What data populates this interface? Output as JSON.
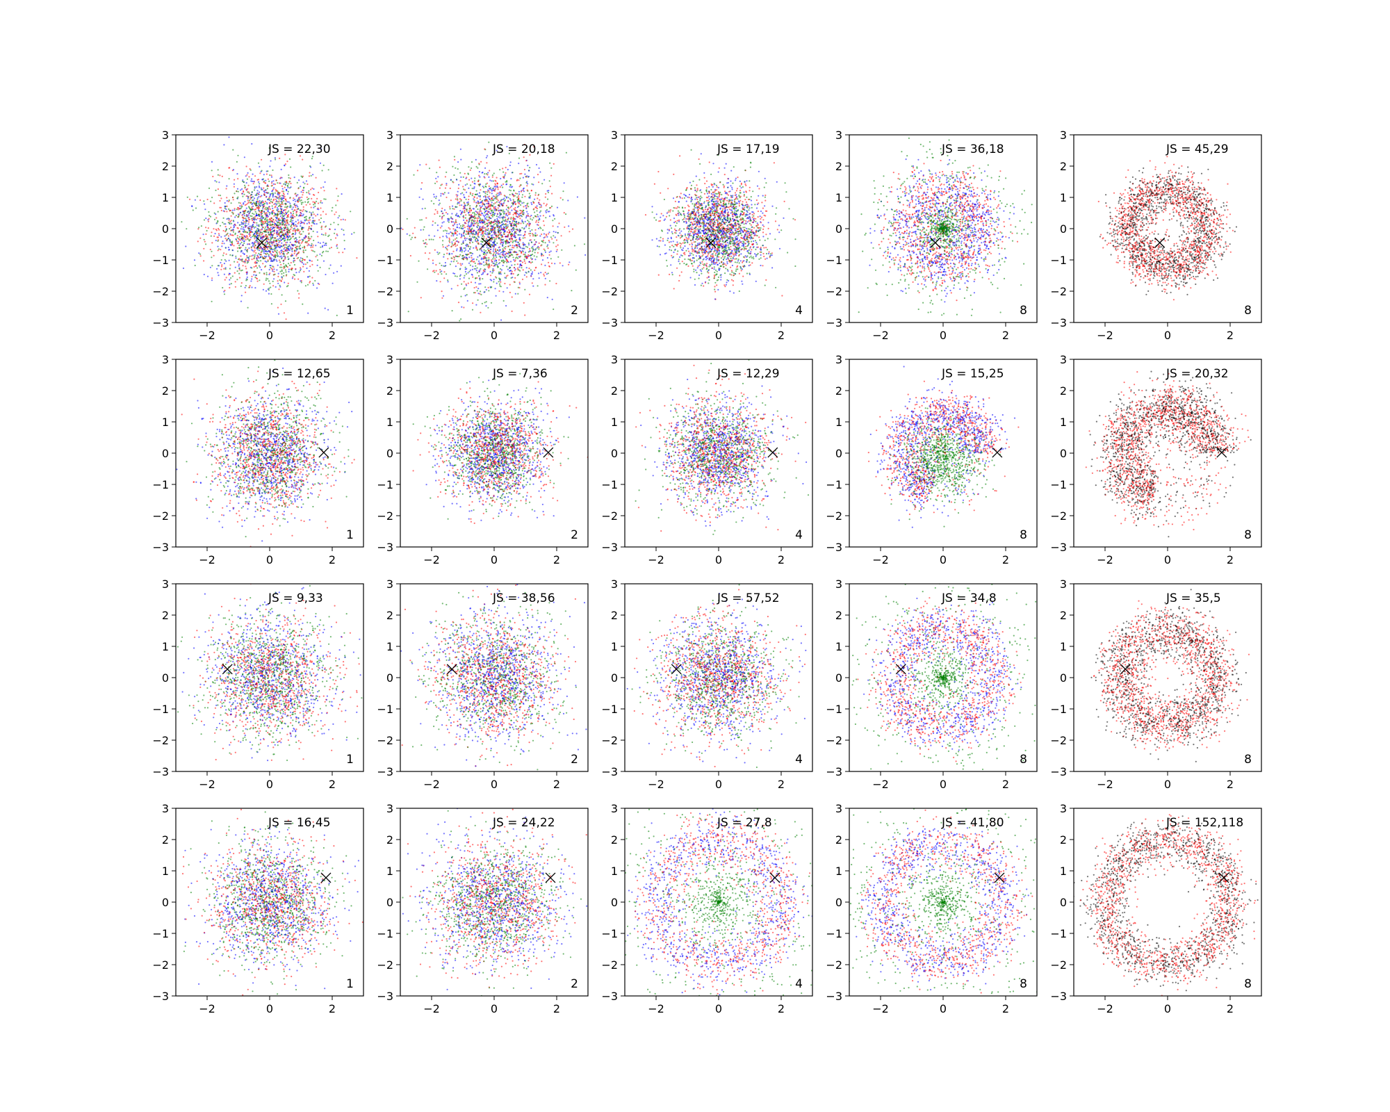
{
  "chart_data": {
    "type": "scatter",
    "layout": {
      "rows": 4,
      "cols": 5
    },
    "axes": {
      "xlim": [
        -3,
        3
      ],
      "ylim": [
        -3,
        3
      ],
      "xticks": [
        -2,
        0,
        2
      ],
      "yticks": [
        -3,
        -2,
        -1,
        0,
        1,
        2,
        3
      ],
      "grid": false
    },
    "colors": {
      "red": "#ff0000",
      "green": "#008000",
      "blue": "#0000ff",
      "black": "#000000"
    },
    "marker_positions": [
      [
        -0.25,
        -0.45
      ],
      [
        1.73,
        0.02
      ],
      [
        -1.35,
        0.27
      ],
      [
        1.8,
        0.78
      ]
    ],
    "panels": [
      {
        "row": 0,
        "col": 0,
        "js": "JS = 22,30",
        "n": "1",
        "pattern": "gauss",
        "sigma": 0.9,
        "colors": [
          "blue",
          "green",
          "red"
        ]
      },
      {
        "row": 0,
        "col": 1,
        "js": "JS = 20,18",
        "n": "2",
        "pattern": "gauss",
        "sigma": 0.95,
        "colors": [
          "blue",
          "green",
          "red"
        ]
      },
      {
        "row": 0,
        "col": 2,
        "js": "JS = 17,19",
        "n": "4",
        "pattern": "gauss",
        "sigma": 0.75,
        "colors": [
          "blue",
          "green",
          "red"
        ]
      },
      {
        "row": 0,
        "col": 3,
        "js": "JS = 36,18",
        "n": "8",
        "pattern": "ring",
        "radius": 1.2,
        "width": 0.45,
        "colors": [
          "green",
          "blue",
          "red"
        ]
      },
      {
        "row": 0,
        "col": 4,
        "js": "JS = 45,29",
        "n": "8",
        "pattern": "ring",
        "radius": 1.3,
        "width": 0.35,
        "colors": [
          "black",
          "red"
        ]
      },
      {
        "row": 1,
        "col": 0,
        "js": "JS = 12,65",
        "n": "1",
        "pattern": "gauss",
        "sigma": 0.9,
        "colors": [
          "blue",
          "green",
          "red"
        ]
      },
      {
        "row": 1,
        "col": 1,
        "js": "JS = 7,36",
        "n": "2",
        "pattern": "gauss",
        "sigma": 0.8,
        "colors": [
          "blue",
          "green",
          "red"
        ]
      },
      {
        "row": 1,
        "col": 2,
        "js": "JS = 12,29",
        "n": "4",
        "pattern": "gauss",
        "sigma": 0.85,
        "colors": [
          "blue",
          "red",
          "green"
        ]
      },
      {
        "row": 1,
        "col": 3,
        "js": "JS = 15,25",
        "n": "8",
        "pattern": "arc",
        "radius": 1.3,
        "width": 0.4,
        "colors": [
          "green",
          "blue",
          "red"
        ]
      },
      {
        "row": 1,
        "col": 4,
        "js": "JS = 20,32",
        "n": "8",
        "pattern": "arc",
        "radius": 1.5,
        "width": 0.45,
        "colors": [
          "black",
          "red"
        ]
      },
      {
        "row": 2,
        "col": 0,
        "js": "JS = 9,33",
        "n": "1",
        "pattern": "gauss",
        "sigma": 1.0,
        "colors": [
          "blue",
          "green",
          "red"
        ]
      },
      {
        "row": 2,
        "col": 1,
        "js": "JS = 38,56",
        "n": "2",
        "pattern": "gauss",
        "sigma": 1.0,
        "colors": [
          "red",
          "green",
          "blue"
        ]
      },
      {
        "row": 2,
        "col": 2,
        "js": "JS = 57,52",
        "n": "4",
        "pattern": "gauss",
        "sigma": 0.95,
        "colors": [
          "red",
          "green",
          "blue"
        ]
      },
      {
        "row": 2,
        "col": 3,
        "js": "JS = 34,8",
        "n": "8",
        "pattern": "ring",
        "radius": 1.6,
        "width": 0.4,
        "colors": [
          "green",
          "blue",
          "red"
        ]
      },
      {
        "row": 2,
        "col": 4,
        "js": "JS = 35,5",
        "n": "8",
        "pattern": "ring",
        "radius": 1.55,
        "width": 0.4,
        "colors": [
          "black",
          "red"
        ]
      },
      {
        "row": 3,
        "col": 0,
        "js": "JS = 16,45",
        "n": "1",
        "pattern": "gauss",
        "sigma": 0.95,
        "colors": [
          "blue",
          "green",
          "red"
        ]
      },
      {
        "row": 3,
        "col": 1,
        "js": "JS = 24,22",
        "n": "2",
        "pattern": "gauss",
        "sigma": 1.0,
        "colors": [
          "blue",
          "green",
          "red"
        ]
      },
      {
        "row": 3,
        "col": 2,
        "js": "JS = 27,8",
        "n": "4",
        "pattern": "ring",
        "radius": 2.0,
        "width": 0.45,
        "colors": [
          "green",
          "blue",
          "red"
        ]
      },
      {
        "row": 3,
        "col": 3,
        "js": "JS = 41,80",
        "n": "8",
        "pattern": "ring",
        "radius": 1.9,
        "width": 0.4,
        "colors": [
          "green",
          "blue",
          "red"
        ]
      },
      {
        "row": 3,
        "col": 4,
        "js": "JS = 152,118",
        "n": "8",
        "pattern": "ring",
        "radius": 2.0,
        "width": 0.35,
        "colors": [
          "black",
          "red"
        ]
      }
    ]
  }
}
